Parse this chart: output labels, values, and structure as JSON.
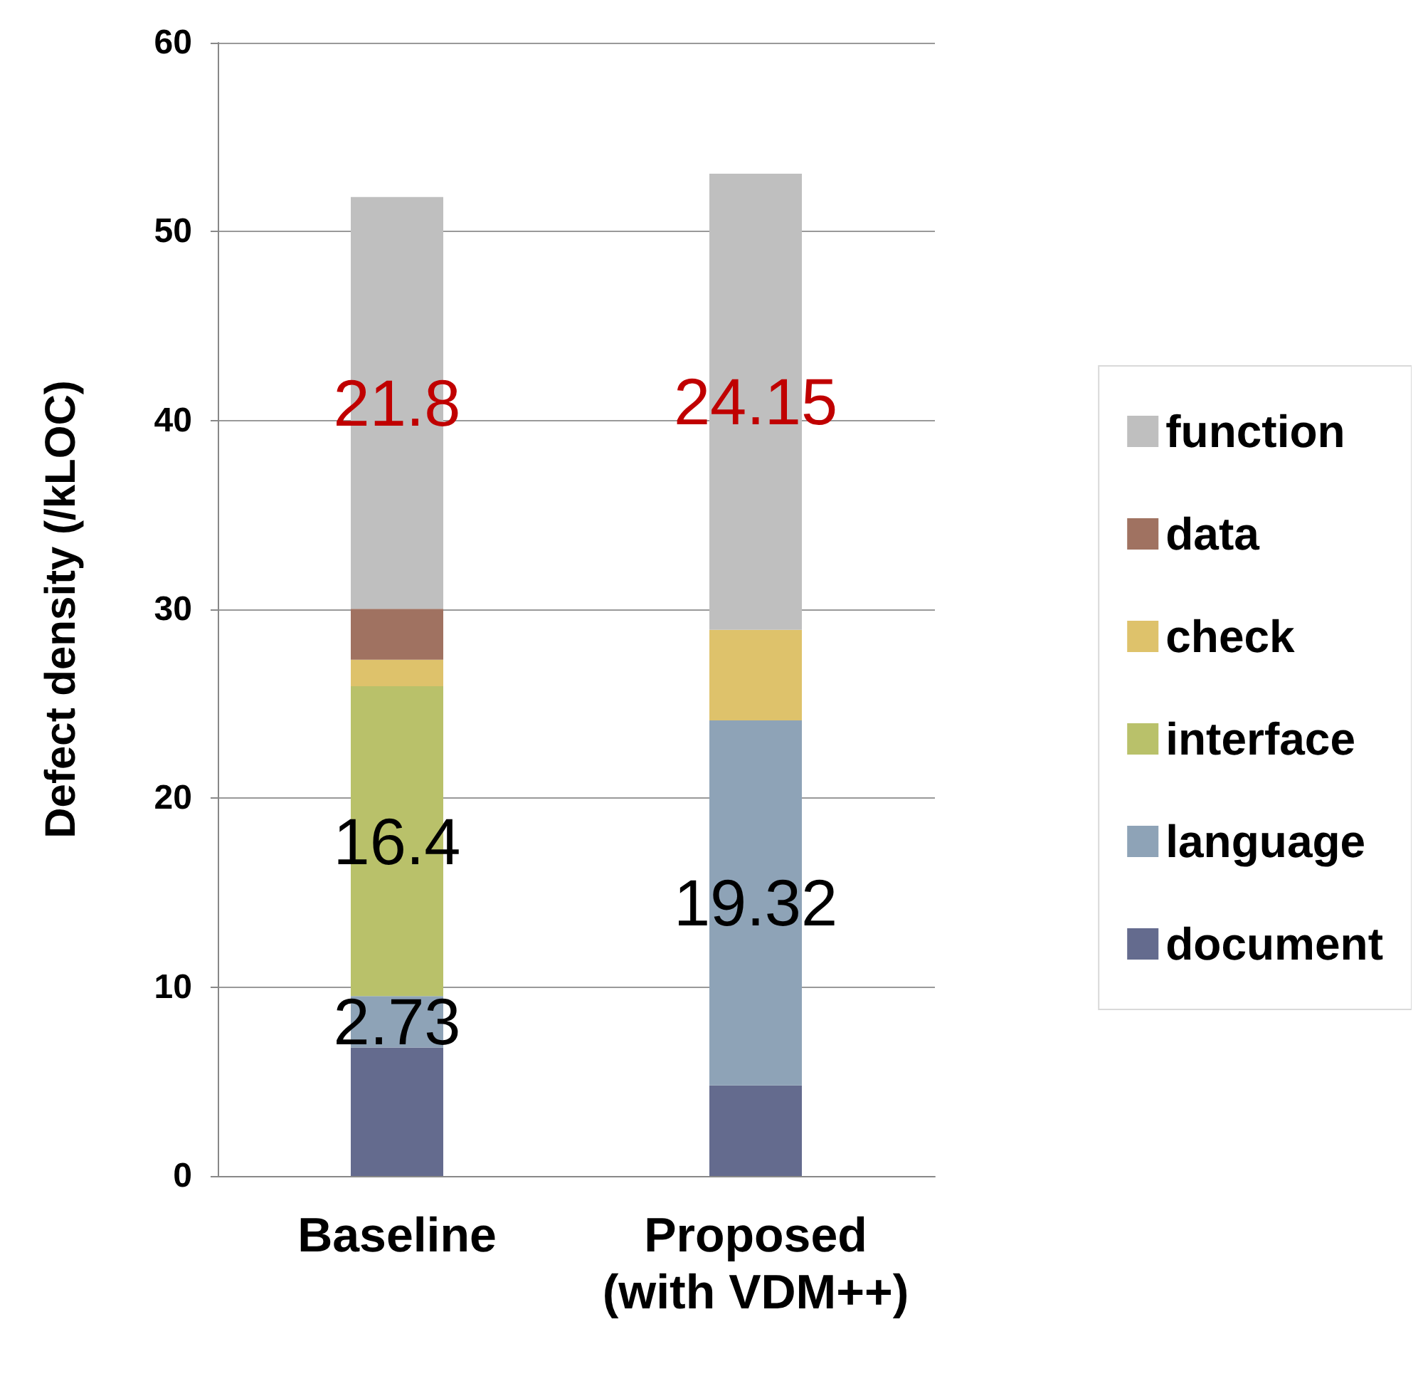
{
  "chart_data": {
    "type": "bar",
    "stacked": true,
    "ylabel": "Defect density (/kLOC)",
    "categories": [
      "Baseline",
      "Proposed\n(with VDM++)"
    ],
    "ylim": [
      0,
      60
    ],
    "yticks": [
      0,
      10,
      20,
      30,
      40,
      50,
      60
    ],
    "grid": "y",
    "legend": "right",
    "series": [
      {
        "name": "document",
        "color": "#646b8e",
        "values": [
          6.8,
          4.8
        ]
      },
      {
        "name": "language",
        "color": "#8ea3b7",
        "values": [
          2.73,
          19.32
        ],
        "value_labels": [
          "2.73",
          "19.32"
        ]
      },
      {
        "name": "interface",
        "color": "#b9c16a",
        "values": [
          16.4,
          0
        ],
        "value_labels": [
          "16.4",
          null
        ]
      },
      {
        "name": "check",
        "color": "#dec26b",
        "values": [
          1.4,
          4.8
        ]
      },
      {
        "name": "data",
        "color": "#a07261",
        "values": [
          2.7,
          0
        ]
      },
      {
        "name": "function",
        "color": "#bfbfbf",
        "values": [
          21.8,
          24.15
        ],
        "value_labels": [
          "21.8",
          "24.15"
        ]
      }
    ]
  }
}
